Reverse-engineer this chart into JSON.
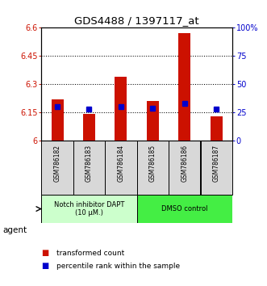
{
  "title": "GDS4488 / 1397117_at",
  "categories": [
    "GSM786182",
    "GSM786183",
    "GSM786184",
    "GSM786185",
    "GSM786186",
    "GSM786187"
  ],
  "red_values": [
    6.22,
    6.14,
    6.34,
    6.21,
    6.57,
    6.13
  ],
  "blue_values": [
    30,
    28,
    30,
    29,
    33,
    28
  ],
  "ylim_left": [
    6.0,
    6.6
  ],
  "ylim_right": [
    0,
    100
  ],
  "yticks_left": [
    6.0,
    6.15,
    6.3,
    6.45,
    6.6
  ],
  "ytick_labels_left": [
    "6",
    "6.15",
    "6.3",
    "6.45",
    "6.6"
  ],
  "yticks_right": [
    0,
    25,
    50,
    75,
    100
  ],
  "ytick_labels_right": [
    "0",
    "25",
    "50",
    "75",
    "100%"
  ],
  "red_color": "#cc1100",
  "blue_color": "#0000cc",
  "bar_width": 0.38,
  "group_left": {
    "label": "Notch inhibitor DAPT\n(10 μM.)",
    "indices": [
      0,
      1,
      2
    ],
    "color": "#ccffcc"
  },
  "group_right": {
    "label": "DMSO control",
    "indices": [
      3,
      4,
      5
    ],
    "color": "#44ee44"
  },
  "legend_red": "transformed count",
  "legend_blue": "percentile rank within the sample",
  "agent_label": "agent",
  "base_value": 6.0,
  "label_bg": "#d8d8d8",
  "dotted_yticks": [
    6.15,
    6.3,
    6.45
  ]
}
